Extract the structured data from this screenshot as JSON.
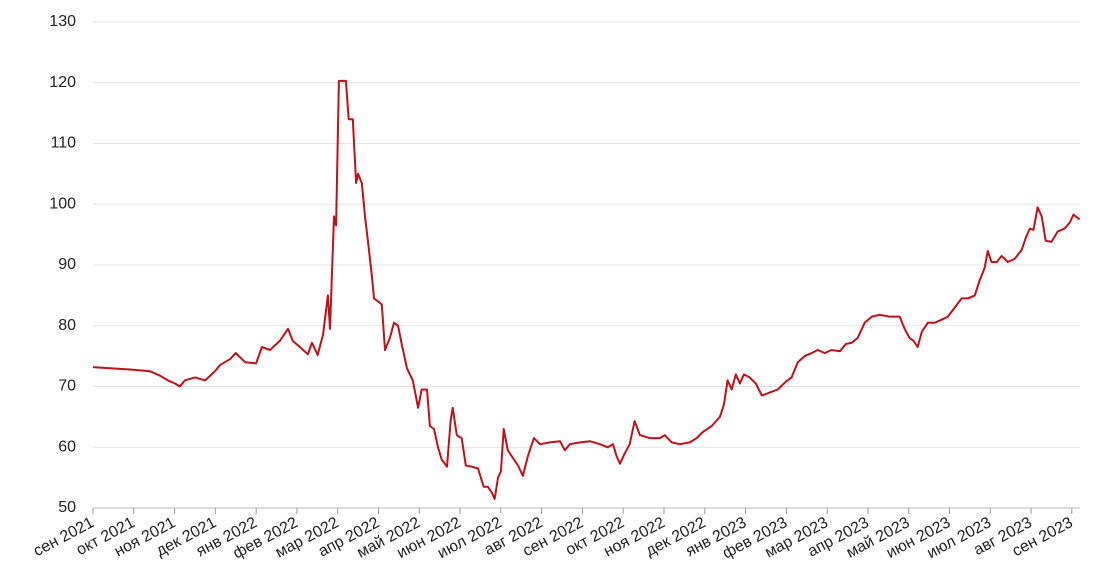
{
  "chart_data": {
    "type": "line",
    "color": "#c0111a",
    "grid": true,
    "x": [
      0,
      0.42,
      0.91,
      1.4,
      1.64,
      1.84,
      2.01,
      2.13,
      2.25,
      2.5,
      2.75,
      2.99,
      3.11,
      3.36,
      3.5,
      3.73,
      4.0,
      4.14,
      4.34,
      4.58,
      4.78,
      4.9,
      5.07,
      5.27,
      5.37,
      5.51,
      5.64,
      5.76,
      5.81,
      5.91,
      5.96,
      6.03,
      6.2,
      6.27,
      6.37,
      6.45,
      6.5,
      6.59,
      6.67,
      6.74,
      6.84,
      6.89,
      6.99,
      7.08,
      7.16,
      7.28,
      7.38,
      7.48,
      7.57,
      7.7,
      7.84,
      7.97,
      8.06,
      8.19,
      8.26,
      8.36,
      8.46,
      8.55,
      8.68,
      8.77,
      8.82,
      8.92,
      9.04,
      9.14,
      9.29,
      9.44,
      9.58,
      9.68,
      9.78,
      9.85,
      9.93,
      10.0,
      10.07,
      10.17,
      10.32,
      10.42,
      10.54,
      10.66,
      10.81,
      10.96,
      11.2,
      11.45,
      11.57,
      11.69,
      11.94,
      12.18,
      12.43,
      12.62,
      12.75,
      12.84,
      12.92,
      13.04,
      13.16,
      13.28,
      13.41,
      13.65,
      13.9,
      14.02,
      14.19,
      14.39,
      14.63,
      14.8,
      14.95,
      15.17,
      15.37,
      15.47,
      15.56,
      15.66,
      15.76,
      15.86,
      15.96,
      16.1,
      16.25,
      16.4,
      16.59,
      16.79,
      16.99,
      17.13,
      17.28,
      17.45,
      17.62,
      17.77,
      17.94,
      18.11,
      18.31,
      18.46,
      18.6,
      18.75,
      18.92,
      19.1,
      19.29,
      19.53,
      19.78,
      19.9,
      20.02,
      20.12,
      20.22,
      20.32,
      20.47,
      20.64,
      20.81,
      20.96,
      21.13,
      21.3,
      21.45,
      21.62,
      21.74,
      21.86,
      21.94,
      22.03,
      22.16,
      22.28,
      22.43,
      22.6,
      22.77,
      22.87,
      22.97,
      23.06,
      23.16,
      23.26,
      23.36,
      23.5,
      23.65,
      23.82,
      23.95,
      24.04,
      24.19
    ],
    "values": [
      73.2,
      73.0,
      72.8,
      72.5,
      71.8,
      71.0,
      70.5,
      70.0,
      71.0,
      71.5,
      71.0,
      72.5,
      73.5,
      74.5,
      75.5,
      74.0,
      73.8,
      76.5,
      76.0,
      77.5,
      79.5,
      77.5,
      76.5,
      75.3,
      77.2,
      75.2,
      78.5,
      85.0,
      79.5,
      98.0,
      96.5,
      120.3,
      120.3,
      114.0,
      114.0,
      103.5,
      105.0,
      103.5,
      98.0,
      94.0,
      88.0,
      84.5,
      84.0,
      83.5,
      76.0,
      78.0,
      80.5,
      80.0,
      77.0,
      73.0,
      71.0,
      66.5,
      69.5,
      69.5,
      63.5,
      63.0,
      60.0,
      58.0,
      56.8,
      64.5,
      66.5,
      62.0,
      61.5,
      57.0,
      56.8,
      56.5,
      53.5,
      53.5,
      52.5,
      51.5,
      55.0,
      56.0,
      63.0,
      59.5,
      58.0,
      57.0,
      55.3,
      58.5,
      61.5,
      60.5,
      60.8,
      61.0,
      59.5,
      60.5,
      60.8,
      61.0,
      60.5,
      60.0,
      60.5,
      58.5,
      57.3,
      59.0,
      60.5,
      64.3,
      62.0,
      61.5,
      61.5,
      62.0,
      60.8,
      60.5,
      60.8,
      61.5,
      62.5,
      63.5,
      65.0,
      67.0,
      71.0,
      69.5,
      72.0,
      70.5,
      72.0,
      71.5,
      70.5,
      68.5,
      69.0,
      69.5,
      70.8,
      71.5,
      74.0,
      75.0,
      75.5,
      76.0,
      75.5,
      76.0,
      75.8,
      77.0,
      77.2,
      78.0,
      80.5,
      81.5,
      81.8,
      81.5,
      81.5,
      79.5,
      78.0,
      77.5,
      76.5,
      79.0,
      80.5,
      80.5,
      81.0,
      81.5,
      83.0,
      84.5,
      84.5,
      85.0,
      87.5,
      89.5,
      92.3,
      90.5,
      90.5,
      91.5,
      90.5,
      91.0,
      92.5,
      94.5,
      96.0,
      95.8,
      99.5,
      98.0,
      94.0,
      93.8,
      95.5,
      96.0,
      97.0,
      98.3,
      97.5
    ],
    "xlim": [
      0,
      24.2
    ],
    "xticks": [
      {
        "value": 0,
        "label": "сен 2021"
      },
      {
        "value": 1,
        "label": "окт 2021"
      },
      {
        "value": 2,
        "label": "ноя 2021"
      },
      {
        "value": 3,
        "label": "дек 2021"
      },
      {
        "value": 4,
        "label": "янв 2022"
      },
      {
        "value": 5,
        "label": "фев 2022"
      },
      {
        "value": 6,
        "label": "мар 2022"
      },
      {
        "value": 7,
        "label": "апр 2022"
      },
      {
        "value": 8,
        "label": "май 2022"
      },
      {
        "value": 9,
        "label": "июн 2022"
      },
      {
        "value": 10,
        "label": "июл 2022"
      },
      {
        "value": 11,
        "label": "авг 2022"
      },
      {
        "value": 12,
        "label": "сен 2022"
      },
      {
        "value": 13,
        "label": "окт 2022"
      },
      {
        "value": 14,
        "label": "ноя 2022"
      },
      {
        "value": 15,
        "label": "дек 2022"
      },
      {
        "value": 16,
        "label": "янв 2023"
      },
      {
        "value": 17,
        "label": "фев 2023"
      },
      {
        "value": 18,
        "label": "мар 2023"
      },
      {
        "value": 19,
        "label": "апр 2023"
      },
      {
        "value": 20,
        "label": "май 2023"
      },
      {
        "value": 21,
        "label": "июн 2023"
      },
      {
        "value": 22,
        "label": "июл 2023"
      },
      {
        "value": 23,
        "label": "авг 2023"
      },
      {
        "value": 24,
        "label": "сен 2023"
      }
    ],
    "ylim": [
      50,
      130
    ],
    "yticks": [
      50,
      60,
      70,
      80,
      90,
      100,
      110,
      120,
      130
    ]
  }
}
